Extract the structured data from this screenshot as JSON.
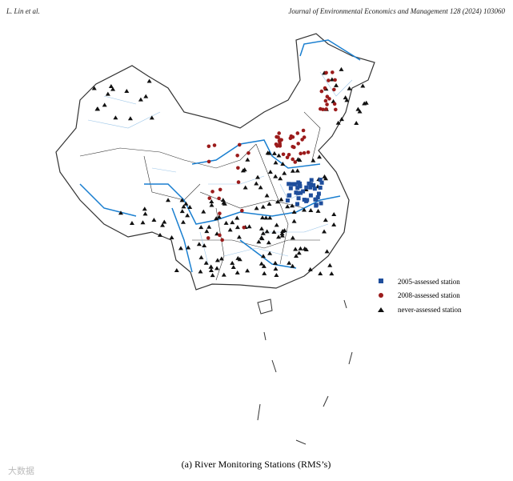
{
  "header": {
    "authors": "L. Lin et al.",
    "journal": "Journal of Environmental Economics and Management 128 (2024) 103060"
  },
  "figure": {
    "legend": [
      "2005-assessed station",
      "2008-assessed station",
      "never-assessed station"
    ],
    "caption": "(a) River Monitoring Stations (RMS’s)"
  },
  "watermark": "大数据"
}
